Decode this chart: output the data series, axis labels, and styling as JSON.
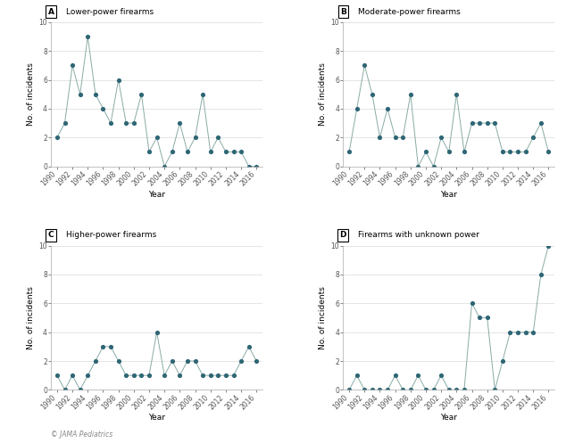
{
  "years": [
    1990,
    1991,
    1992,
    1993,
    1994,
    1995,
    1996,
    1997,
    1998,
    1999,
    2000,
    2001,
    2002,
    2003,
    2004,
    2005,
    2006,
    2007,
    2008,
    2009,
    2010,
    2011,
    2012,
    2013,
    2014,
    2015,
    2016
  ],
  "lower_power": [
    2,
    3,
    7,
    5,
    9,
    5,
    4,
    3,
    6,
    3,
    3,
    5,
    1,
    2,
    0,
    1,
    3,
    1,
    2,
    5,
    1,
    2,
    1,
    1,
    1,
    0,
    0
  ],
  "moderate_power": [
    1,
    4,
    7,
    5,
    2,
    4,
    2,
    2,
    5,
    0,
    1,
    0,
    2,
    1,
    5,
    1,
    3,
    3,
    3,
    3,
    1,
    1,
    1,
    1,
    2,
    3,
    1
  ],
  "higher_power": [
    1,
    0,
    1,
    0,
    1,
    2,
    3,
    3,
    2,
    1,
    1,
    1,
    1,
    4,
    1,
    2,
    1,
    2,
    2,
    1,
    1,
    1,
    1,
    1,
    2,
    3,
    2
  ],
  "unknown_power": [
    0,
    1,
    0,
    0,
    0,
    0,
    1,
    0,
    0,
    1,
    0,
    0,
    1,
    0,
    0,
    0,
    6,
    5,
    5,
    0,
    2,
    4,
    4,
    4,
    4,
    8,
    10
  ],
  "dot_color": "#2e6675",
  "line_color": "#8aaba5",
  "label_letters": [
    "A",
    "B",
    "C",
    "D"
  ],
  "subtitles": [
    "Lower-power firearms",
    "Moderate-power firearms",
    "Higher-power firearms",
    "Firearms with unknown power"
  ],
  "ylabel": "No. of incidents",
  "xlabel": "Year",
  "ylim": [
    0,
    10
  ],
  "yticks": [
    0,
    2,
    4,
    6,
    8,
    10
  ],
  "xtick_years": [
    1990,
    1992,
    1994,
    1996,
    1998,
    2000,
    2002,
    2004,
    2006,
    2008,
    2010,
    2012,
    2014,
    2016
  ],
  "background_color": "#ffffff",
  "grid_color": "#e0e0e0",
  "watermark": "© JAMA Pediatrics"
}
